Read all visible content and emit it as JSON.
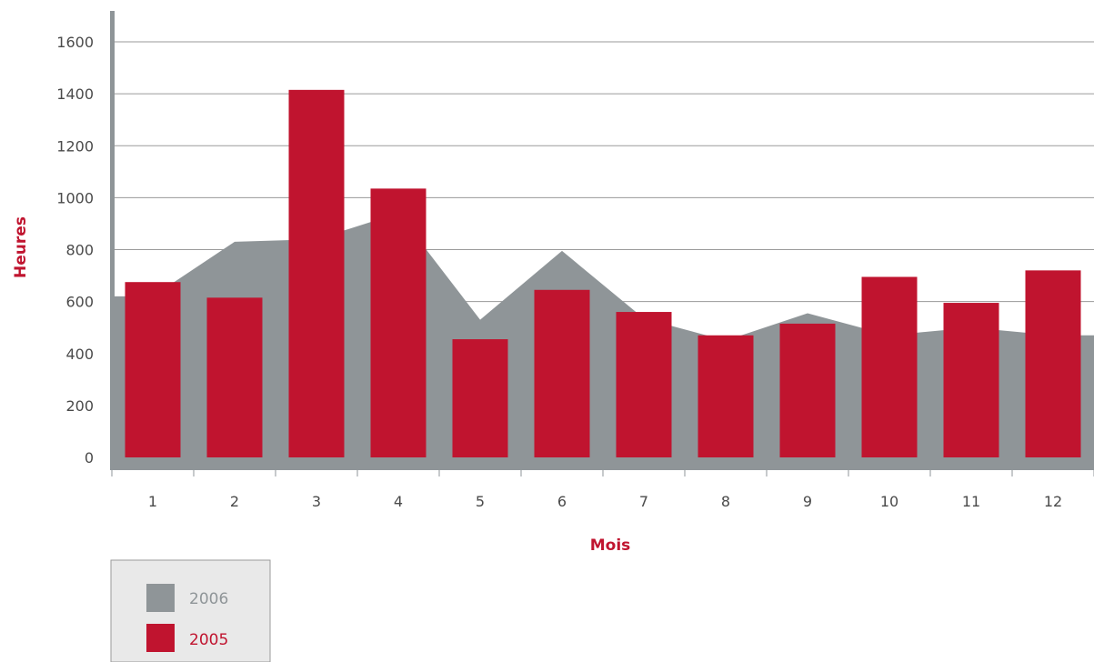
{
  "chart_data": {
    "type": "bar",
    "xlabel": "Mois",
    "ylabel": "Heures",
    "categories": [
      "1",
      "2",
      "3",
      "4",
      "5",
      "6",
      "7",
      "8",
      "9",
      "10",
      "11",
      "12"
    ],
    "ylim": [
      0,
      1600
    ],
    "yticks": [
      "0",
      "200",
      "400",
      "600",
      "800",
      "1000",
      "1200",
      "1400",
      "1600"
    ],
    "grid": true,
    "legend_position": "bottom-left",
    "series": [
      {
        "name": "2006",
        "type": "area",
        "color": "#8f9598",
        "values": [
          620,
          830,
          840,
          940,
          530,
          795,
          535,
          450,
          555,
          470,
          500,
          470
        ]
      },
      {
        "name": "2005",
        "type": "bar",
        "color": "#c0142f",
        "values": [
          675,
          615,
          1415,
          1035,
          455,
          645,
          560,
          470,
          515,
          695,
          595,
          720
        ]
      }
    ]
  }
}
